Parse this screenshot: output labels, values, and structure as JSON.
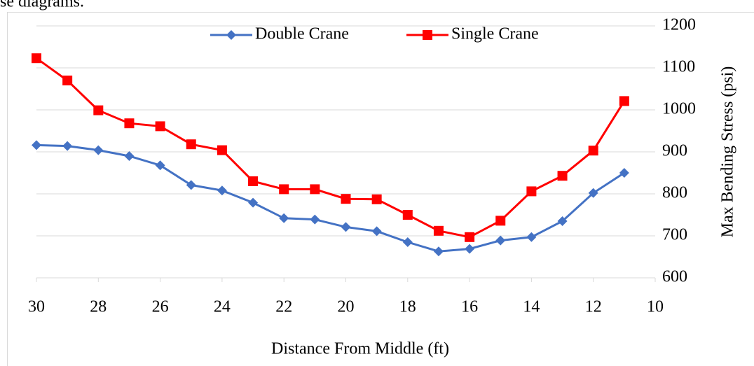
{
  "top_text": "se diagrams.",
  "chart_data": {
    "type": "line",
    "xlabel": "Distance From Middle (ft)",
    "ylabel": "Max Bending Stress (psi)",
    "x": [
      30,
      29,
      28,
      27,
      26,
      25,
      24,
      23,
      22,
      21,
      20,
      19,
      18,
      17,
      16,
      15,
      14,
      13,
      12,
      11
    ],
    "series": [
      {
        "name": "Double Crane",
        "color": "#4472c4",
        "marker": "diamond",
        "values": [
          916,
          914,
          904,
          890,
          868,
          821,
          808,
          779,
          742,
          739,
          721,
          711,
          685,
          663,
          669,
          689,
          697,
          735,
          802,
          850
        ]
      },
      {
        "name": "Single Crane",
        "color": "#ff0000",
        "marker": "square",
        "values": [
          1123,
          1070,
          999,
          968,
          961,
          918,
          904,
          830,
          811,
          811,
          788,
          787,
          750,
          712,
          697,
          736,
          806,
          843,
          903,
          1021
        ]
      }
    ],
    "xlim": [
      30,
      10
    ],
    "xticks": [
      30,
      28,
      26,
      24,
      22,
      20,
      18,
      16,
      14,
      12,
      10
    ],
    "ylim": [
      600,
      1200
    ],
    "yticks": [
      600,
      700,
      800,
      900,
      1000,
      1100,
      1200
    ],
    "yaxis_position": "right",
    "grid": true,
    "legend_position": "top"
  }
}
